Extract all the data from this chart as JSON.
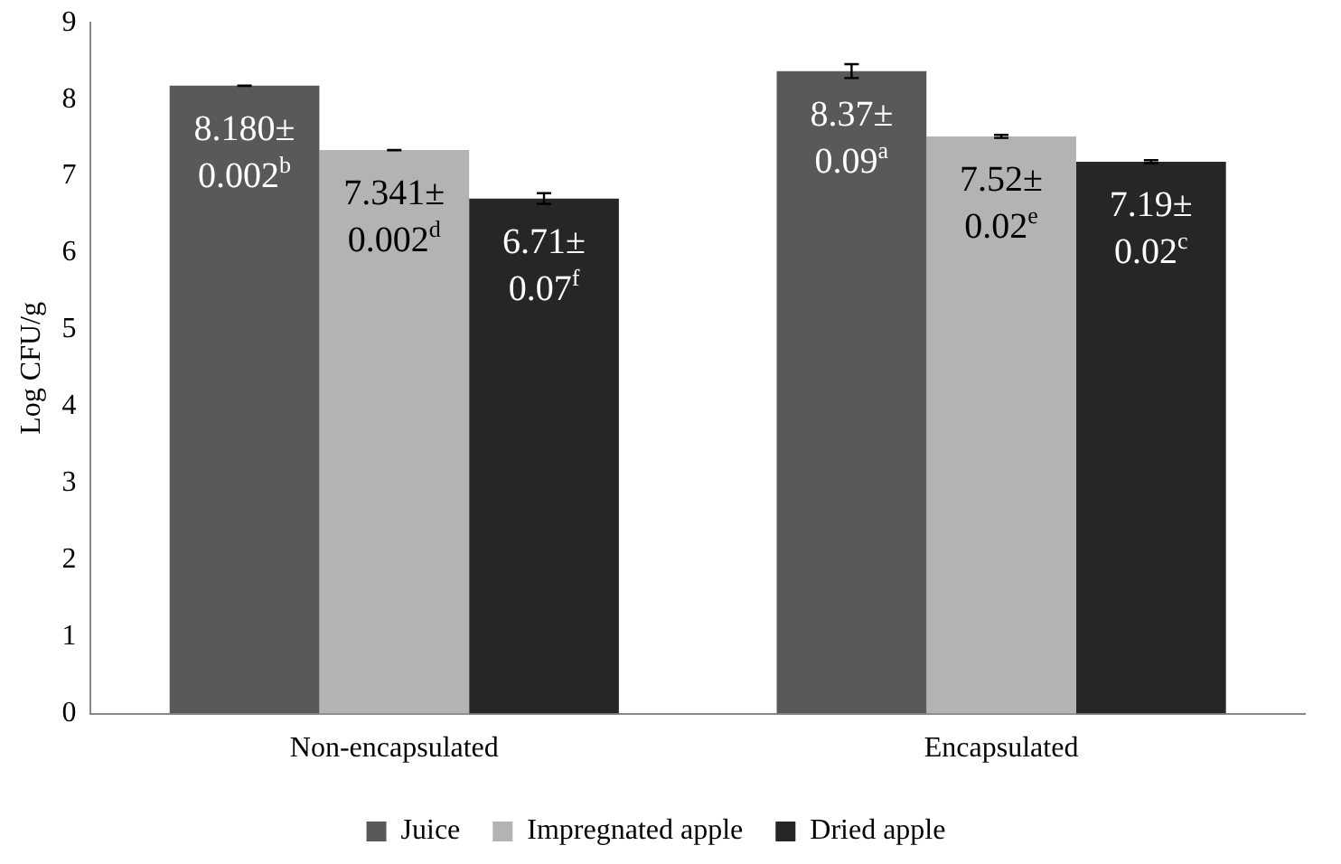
{
  "chart_data": {
    "type": "bar",
    "ylabel": "Log CFU/g",
    "categories": [
      "Non-encapsulated",
      "Encapsulated"
    ],
    "series": [
      {
        "name": "Juice",
        "color": "#595959",
        "values": [
          8.18,
          8.37
        ],
        "errors": [
          0.002,
          0.09
        ],
        "value_labels": [
          "8.180±\n0.002$^{b}$",
          "8.37±\n0.09$^{a}$"
        ]
      },
      {
        "name": "Impregnated apple",
        "color": "#b3b3b3",
        "values": [
          7.341,
          7.52
        ],
        "errors": [
          0.002,
          0.02
        ],
        "value_labels": [
          "7.341±\n0.002$^{d}$",
          "7.52±\n0.02$^{e}$"
        ]
      },
      {
        "name": "Dried apple",
        "color": "#262626",
        "values": [
          6.71,
          7.19
        ],
        "errors": [
          0.07,
          0.02
        ],
        "value_labels": [
          "6.71±\n0.07$^{f}$",
          "7.19±\n0.02$^{c}$"
        ]
      }
    ],
    "ylim": [
      0,
      9
    ],
    "yticks": [
      0,
      1,
      2,
      3,
      4,
      5,
      6,
      7,
      8,
      9
    ],
    "grid": false,
    "legend": "bottom"
  }
}
